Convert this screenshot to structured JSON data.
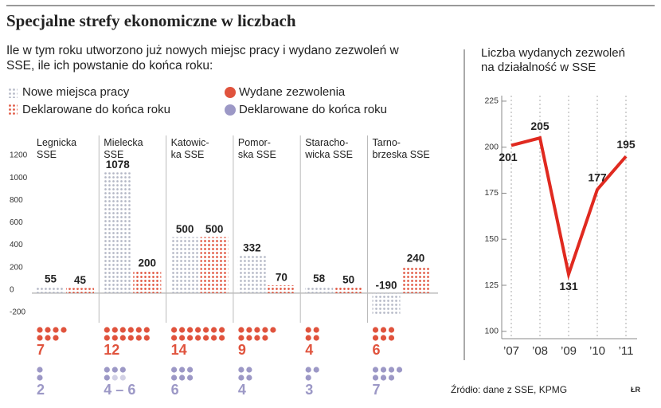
{
  "title": "Specjalne strefy ekonomiczne w liczbach",
  "subtitle": "Ile w tym roku utworzono już nowych miejsc pracy i wydano zezwoleń w SSE, ile ich powstanie do końca roku:",
  "source": "Źródło: dane z SSE, KPMG",
  "credit": "ŁR",
  "chart_data": [
    {
      "type": "bar",
      "categories": [
        "Legnicka\nSSE",
        "Mielecka\nSSE",
        "Katowic-\nka SSE",
        "Pomor-\nska SSE",
        "Staracho-\nwicka SSE",
        "Tarno-\nbrzeska SSE"
      ],
      "series": [
        {
          "name": "Nowe miejsca pracy",
          "color": "#b4b8c6",
          "values": [
            55,
            1078,
            500,
            332,
            58,
            -190
          ]
        },
        {
          "name": "Deklarowane do końca roku",
          "color": "#e0533d",
          "values": [
            45,
            200,
            500,
            70,
            50,
            240
          ]
        }
      ],
      "dot_series": [
        {
          "name": "Wydane zezwolenia",
          "color": "#e0533d",
          "values": [
            7,
            12,
            14,
            9,
            4,
            6
          ]
        },
        {
          "name": "Deklarowane do końca roku",
          "color": "#9c98c6",
          "values": [
            2,
            4,
            6,
            4,
            3,
            7
          ],
          "value_labels": [
            "2",
            "4 – 6",
            "6",
            "4",
            "3",
            "7"
          ],
          "range_max": [
            2,
            6,
            6,
            4,
            3,
            7
          ]
        }
      ],
      "ylim": [
        -300,
        1300
      ],
      "yticks": [
        -200,
        0,
        200,
        400,
        600,
        800,
        1000,
        1200
      ]
    },
    {
      "type": "line",
      "title": "Liczba wydanych zezwoleń na działalność w SSE",
      "categories": [
        "’07",
        "’08",
        "’09",
        "’10",
        "’11"
      ],
      "values": [
        201,
        205,
        131,
        177,
        195
      ],
      "color": "#e02a20",
      "ylim": [
        96,
        228
      ],
      "yticks": [
        100,
        125,
        150,
        175,
        200,
        225
      ]
    }
  ]
}
